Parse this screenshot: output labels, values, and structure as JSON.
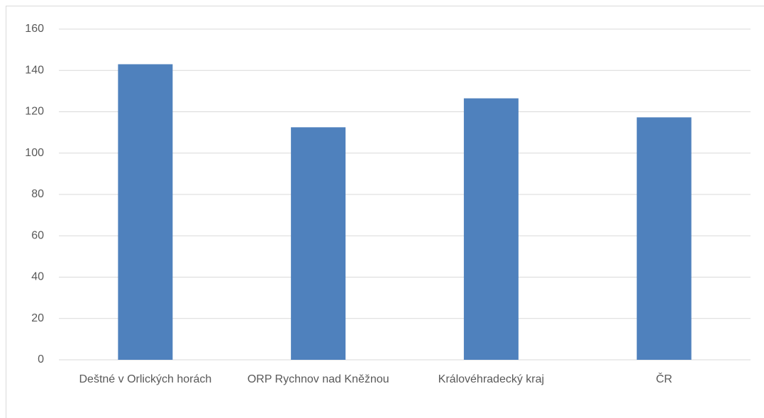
{
  "chart_data": {
    "type": "bar",
    "categories": [
      "Deštné v Orlických horách",
      "ORP Rychnov nad Kněžnou",
      "Královéhradecký kraj",
      "ČR"
    ],
    "values": [
      143,
      112.5,
      126.5,
      117.3
    ],
    "color": "#4f81bd",
    "ylim": [
      0,
      160
    ],
    "yticks": [
      0,
      20,
      40,
      60,
      80,
      100,
      120,
      140,
      160
    ],
    "grid": true
  }
}
